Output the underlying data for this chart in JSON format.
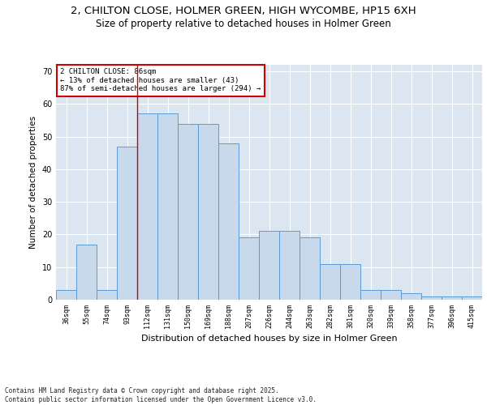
{
  "title_line1": "2, CHILTON CLOSE, HOLMER GREEN, HIGH WYCOMBE, HP15 6XH",
  "title_line2": "Size of property relative to detached houses in Holmer Green",
  "xlabel": "Distribution of detached houses by size in Holmer Green",
  "ylabel": "Number of detached properties",
  "categories": [
    "36sqm",
    "55sqm",
    "74sqm",
    "93sqm",
    "112sqm",
    "131sqm",
    "150sqm",
    "169sqm",
    "188sqm",
    "207sqm",
    "226sqm",
    "244sqm",
    "263sqm",
    "282sqm",
    "301sqm",
    "320sqm",
    "339sqm",
    "358sqm",
    "377sqm",
    "396sqm",
    "415sqm"
  ],
  "values": [
    3,
    17,
    3,
    47,
    57,
    57,
    54,
    54,
    48,
    19,
    21,
    21,
    19,
    11,
    11,
    3,
    3,
    2,
    1,
    1,
    1
  ],
  "bar_color": "#c8d9eb",
  "bar_edge_color": "#5b9bd5",
  "grid_color": "#c8d4e8",
  "background_color": "#dce6f1",
  "annotation_box_color": "#cc0000",
  "annotation_text": "2 CHILTON CLOSE: 86sqm\n← 13% of detached houses are smaller (43)\n87% of semi-detached houses are larger (294) →",
  "vline_x_index": 3.5,
  "vline_color": "#cc0000",
  "ylim": [
    0,
    72
  ],
  "yticks": [
    0,
    10,
    20,
    30,
    40,
    50,
    60,
    70
  ],
  "footnote": "Contains HM Land Registry data © Crown copyright and database right 2025.\nContains public sector information licensed under the Open Government Licence v3.0.",
  "annotation_fontsize": 6.5,
  "title_fontsize1": 9.5,
  "title_fontsize2": 8.5,
  "tick_fontsize": 6.0,
  "ylabel_fontsize": 7.5,
  "xlabel_fontsize": 8.0,
  "footnote_fontsize": 5.5
}
